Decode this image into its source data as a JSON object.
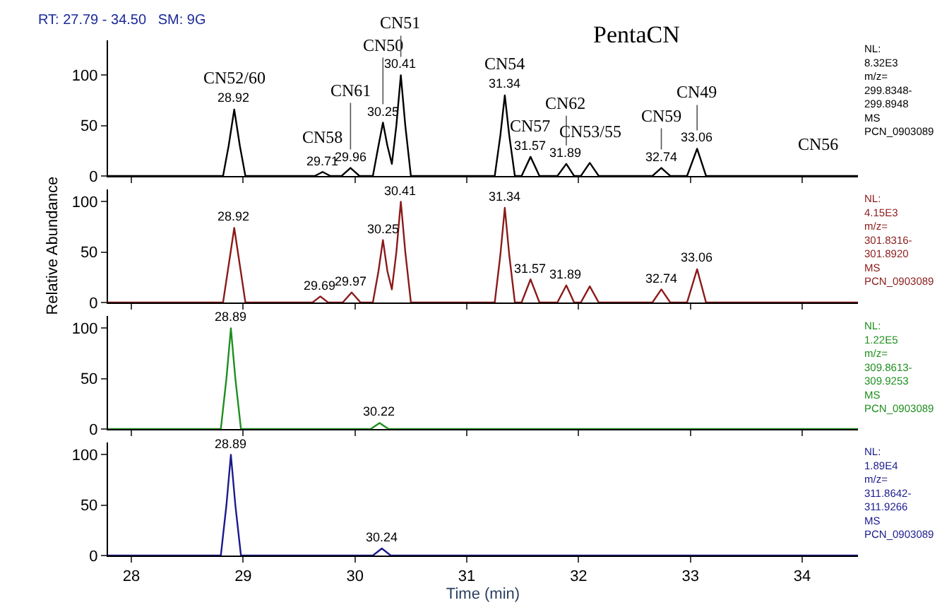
{
  "chart_data": [
    {
      "type": "line",
      "title": "PentaCN",
      "subtitle": "RT: 27.79 - 34.50   SM: 9G",
      "xlim": [
        27.79,
        34.5
      ],
      "xticks": [
        28,
        29,
        30,
        31,
        32,
        33,
        34
      ],
      "ylim": [
        0,
        135
      ],
      "yticks": [
        0,
        50,
        100
      ],
      "tick_labels": "y",
      "series": [
        {
          "color": "#000000",
          "x": [
            27.79,
            28.82,
            28.87,
            28.92,
            28.97,
            29.02,
            29.64,
            29.71,
            29.78,
            29.88,
            29.96,
            30.04,
            30.16,
            30.21,
            30.25,
            30.29,
            30.33,
            30.37,
            30.41,
            30.45,
            30.5,
            31.25,
            31.3,
            31.34,
            31.38,
            31.43,
            31.49,
            31.57,
            31.65,
            31.81,
            31.89,
            31.96,
            32.02,
            32.1,
            32.18,
            32.66,
            32.74,
            32.82,
            32.97,
            33.06,
            33.14,
            34.5
          ],
          "values": [
            0,
            0,
            30,
            66,
            30,
            0,
            0,
            4,
            0,
            0,
            8,
            0,
            0,
            30,
            53,
            30,
            12,
            50,
            100,
            50,
            0,
            0,
            40,
            80,
            40,
            0,
            0,
            19,
            0,
            0,
            12,
            0,
            0,
            13,
            0,
            0,
            8,
            0,
            0,
            27,
            0,
            0
          ]
        }
      ],
      "annotations": [
        {
          "text": "28.92",
          "x": 28.92,
          "y": 66
        },
        {
          "text": "CN52/60",
          "x": 28.92,
          "y": 66
        },
        {
          "text": "29.71",
          "x": 29.71,
          "y": 4
        },
        {
          "text": "CN58",
          "x": 29.71,
          "y": 4
        },
        {
          "text": "29.96",
          "x": 29.96,
          "y": 8
        },
        {
          "text": "CN61",
          "x": 29.96,
          "y": 8
        },
        {
          "text": "30.25",
          "x": 30.25,
          "y": 53
        },
        {
          "text": "CN50",
          "x": 30.25,
          "y": 53
        },
        {
          "text": "30.41",
          "x": 30.41,
          "y": 100
        },
        {
          "text": "CN51",
          "x": 30.41,
          "y": 100
        },
        {
          "text": "31.34",
          "x": 31.34,
          "y": 80
        },
        {
          "text": "CN54",
          "x": 31.34,
          "y": 80
        },
        {
          "text": "31.57",
          "x": 31.57,
          "y": 19
        },
        {
          "text": "CN57",
          "x": 31.57,
          "y": 19
        },
        {
          "text": "31.89",
          "x": 31.89,
          "y": 12
        },
        {
          "text": "CN62",
          "x": 31.89,
          "y": 12
        },
        {
          "text": "CN53/55",
          "x": 32.1,
          "y": 13
        },
        {
          "text": "32.74",
          "x": 32.74,
          "y": 8
        },
        {
          "text": "CN59",
          "x": 32.74,
          "y": 8
        },
        {
          "text": "33.06",
          "x": 33.06,
          "y": 27
        },
        {
          "text": "CN49",
          "x": 33.06,
          "y": 27
        },
        {
          "text": "CN56",
          "x": 34.15,
          "y": 0
        },
        "NL:\n8.32E3\nm/z=\n299.8348-\n299.8948\nMS\nPCN_0903089"
      ]
    },
    {
      "type": "line",
      "ylabel": "Relative Abundance",
      "xlim": [
        27.79,
        34.5
      ],
      "xticks": [
        28,
        29,
        30,
        31,
        32,
        33,
        34
      ],
      "ylim": [
        0,
        112
      ],
      "yticks": [
        0,
        50,
        100
      ],
      "tick_labels": "y",
      "series": [
        {
          "color": "#8b1a1a",
          "x": [
            27.79,
            28.82,
            28.87,
            28.92,
            28.97,
            29.02,
            29.62,
            29.69,
            29.76,
            29.89,
            29.97,
            30.05,
            30.16,
            30.21,
            30.25,
            30.29,
            30.33,
            30.37,
            30.41,
            30.45,
            30.5,
            31.25,
            31.3,
            31.34,
            31.38,
            31.43,
            31.49,
            31.57,
            31.65,
            31.81,
            31.89,
            31.96,
            32.02,
            32.1,
            32.18,
            32.66,
            32.74,
            32.82,
            32.97,
            33.06,
            33.14,
            34.5
          ],
          "values": [
            0,
            0,
            37,
            74,
            37,
            0,
            0,
            6,
            0,
            0,
            10,
            0,
            0,
            31,
            62,
            31,
            13,
            50,
            100,
            50,
            0,
            0,
            47,
            94,
            47,
            0,
            0,
            23,
            0,
            0,
            17,
            0,
            0,
            16,
            0,
            0,
            13,
            0,
            0,
            33,
            0,
            0
          ]
        }
      ],
      "annotations": [
        {
          "text": "28.92",
          "x": 28.92,
          "y": 74
        },
        {
          "text": "29.69",
          "x": 29.69,
          "y": 6
        },
        {
          "text": "29.97",
          "x": 29.97,
          "y": 10
        },
        {
          "text": "30.25",
          "x": 30.25,
          "y": 62
        },
        {
          "text": "30.41",
          "x": 30.41,
          "y": 100
        },
        {
          "text": "31.34",
          "x": 31.34,
          "y": 94
        },
        {
          "text": "31.57",
          "x": 31.57,
          "y": 23
        },
        {
          "text": "31.89",
          "x": 31.89,
          "y": 17
        },
        {
          "text": "32.74",
          "x": 32.74,
          "y": 13
        },
        {
          "text": "33.06",
          "x": 33.06,
          "y": 33
        },
        "NL:\n4.15E3\nm/z=\n301.8316-\n301.8920\nMS\nPCN_0903089"
      ]
    },
    {
      "type": "line",
      "xlim": [
        27.79,
        34.5
      ],
      "xticks": [
        28,
        29,
        30,
        31,
        32,
        33,
        34
      ],
      "ylim": [
        0,
        112
      ],
      "yticks": [
        0,
        50,
        100
      ],
      "tick_labels": "y",
      "series": [
        {
          "color": "#1f8f1f",
          "x": [
            27.79,
            28.8,
            28.85,
            28.89,
            28.93,
            28.98,
            30.14,
            30.22,
            30.3,
            34.5
          ],
          "values": [
            0,
            0,
            50,
            100,
            50,
            0,
            0,
            6,
            0,
            0
          ]
        }
      ],
      "annotations": [
        {
          "text": "28.89",
          "x": 28.89,
          "y": 100
        },
        {
          "text": "30.22",
          "x": 30.22,
          "y": 6
        },
        "NL:\n1.22E5\nm/z=\n309.8613-\n309.9253\nMS\nPCN_0903089"
      ]
    },
    {
      "type": "line",
      "xlabel": "Time (min)",
      "xlim": [
        27.79,
        34.5
      ],
      "xticks": [
        28,
        29,
        30,
        31,
        32,
        33,
        34
      ],
      "ylim": [
        0,
        112
      ],
      "yticks": [
        0,
        50,
        100
      ],
      "series": [
        {
          "color": "#1a1a8c",
          "x": [
            27.79,
            28.8,
            28.85,
            28.89,
            28.93,
            28.98,
            30.16,
            30.24,
            30.32,
            34.5
          ],
          "values": [
            0,
            0,
            50,
            100,
            50,
            0,
            0,
            7,
            0,
            0
          ]
        }
      ],
      "annotations": [
        {
          "text": "28.89",
          "x": 28.89,
          "y": 100
        },
        {
          "text": "30.24",
          "x": 30.24,
          "y": 7
        },
        "NL:\n1.89E4\nm/z=\n311.8642-\n311.9266\nMS\nPCN_0903089"
      ]
    }
  ]
}
